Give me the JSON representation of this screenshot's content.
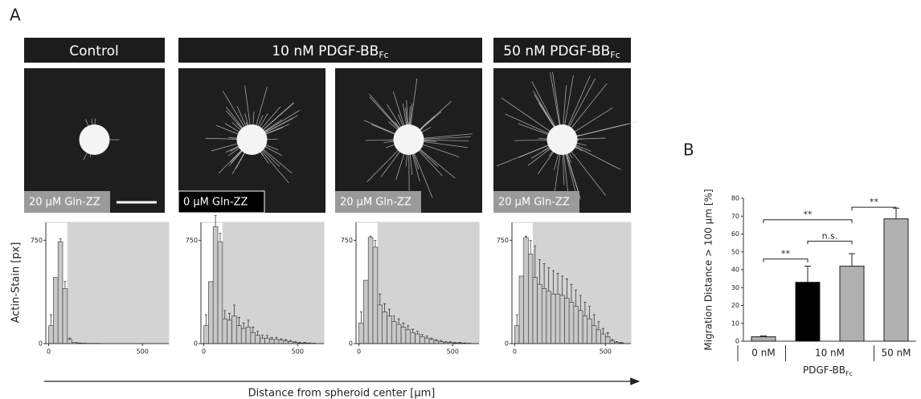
{
  "panel_labels": [
    "A",
    "B"
  ],
  "headers": [
    {
      "text": "Control"
    },
    {
      "text": "10 nM PDGF-BB",
      "sub": "Fc"
    },
    {
      "text": "50 nM PDGF-BB",
      "sub": "Fc"
    }
  ],
  "image_labels": [
    "20 µM Gln-ZZ",
    "0 µM Gln-ZZ",
    "20 µM Gln-ZZ",
    "20 µM Gln-ZZ"
  ],
  "histogram_axes": {
    "ylabel": "Actin-Stain [px]",
    "xlabel": "Distance from spheroid center [µm]"
  },
  "chart_data": [
    {
      "type": "histogram",
      "bins": [
        0,
        25,
        50,
        75,
        100,
        125,
        150,
        175,
        200,
        225,
        250,
        275,
        300,
        325,
        350,
        375,
        400,
        425,
        450,
        475,
        500,
        525,
        550,
        575,
        600
      ],
      "values": [
        130,
        480,
        740,
        400,
        30,
        10,
        5,
        3,
        2,
        2,
        2,
        0,
        0,
        0,
        0,
        0,
        0,
        0,
        0,
        0,
        0,
        0,
        0,
        0
      ],
      "errors": [
        80,
        0,
        20,
        50,
        10,
        0,
        0,
        0,
        0,
        0,
        0,
        0,
        0,
        0,
        0,
        0,
        0,
        0,
        0,
        0,
        0,
        0,
        0,
        0
      ],
      "color": "#c8c8c8",
      "xlim": [
        -15,
        640
      ],
      "ylim": [
        0,
        880
      ],
      "xticks": [
        0,
        500
      ],
      "yticks": [
        0,
        750
      ],
      "shade_from": 100
    },
    {
      "type": "histogram",
      "bins": [
        0,
        25,
        50,
        75,
        100,
        125,
        150,
        175,
        200,
        225,
        250,
        275,
        300,
        325,
        350,
        375,
        400,
        425,
        450,
        475,
        500,
        525,
        550,
        575,
        600
      ],
      "values": [
        130,
        450,
        850,
        740,
        180,
        170,
        200,
        130,
        110,
        120,
        80,
        60,
        40,
        40,
        30,
        30,
        25,
        20,
        15,
        10,
        5,
        5,
        3,
        2
      ],
      "errors": [
        80,
        0,
        80,
        60,
        60,
        50,
        80,
        60,
        40,
        50,
        40,
        30,
        20,
        20,
        15,
        15,
        10,
        10,
        8,
        5,
        3,
        3,
        2,
        1
      ],
      "color": "#c8c8c8",
      "xlim": [
        -15,
        640
      ],
      "ylim": [
        0,
        880
      ],
      "xticks": [
        0,
        500
      ],
      "yticks": [
        0,
        750
      ],
      "shade_from": 100
    },
    {
      "type": "histogram",
      "bins": [
        0,
        25,
        50,
        75,
        100,
        125,
        150,
        175,
        200,
        225,
        250,
        275,
        300,
        325,
        350,
        375,
        400,
        425,
        450,
        475,
        500,
        525,
        550,
        575,
        600
      ],
      "values": [
        150,
        460,
        770,
        700,
        280,
        230,
        200,
        160,
        140,
        120,
        100,
        80,
        70,
        50,
        40,
        30,
        20,
        15,
        10,
        8,
        5,
        5,
        3,
        2
      ],
      "errors": [
        80,
        0,
        10,
        50,
        80,
        60,
        50,
        40,
        40,
        30,
        30,
        25,
        20,
        15,
        15,
        10,
        10,
        8,
        5,
        5,
        3,
        3,
        2,
        1
      ],
      "color": "#c8c8c8",
      "xlim": [
        -15,
        640
      ],
      "ylim": [
        0,
        880
      ],
      "xticks": [
        0,
        500
      ],
      "yticks": [
        0,
        750
      ],
      "shade_from": 100
    },
    {
      "type": "histogram",
      "bins": [
        0,
        25,
        50,
        75,
        100,
        125,
        150,
        175,
        200,
        225,
        250,
        275,
        300,
        325,
        350,
        375,
        400,
        425,
        450,
        475,
        500,
        525,
        550,
        575,
        600
      ],
      "values": [
        130,
        490,
        770,
        650,
        480,
        430,
        400,
        380,
        360,
        360,
        350,
        330,
        300,
        270,
        240,
        200,
        180,
        130,
        100,
        70,
        50,
        20,
        10,
        5
      ],
      "errors": [
        80,
        0,
        10,
        100,
        230,
        180,
        180,
        170,
        170,
        150,
        140,
        140,
        130,
        120,
        110,
        100,
        90,
        80,
        60,
        40,
        30,
        10,
        5,
        3
      ],
      "color": "#c8c8c8",
      "xlim": [
        -15,
        640
      ],
      "ylim": [
        0,
        880
      ],
      "xticks": [
        0,
        500
      ],
      "yticks": [
        0,
        750
      ],
      "shade_from": 100
    },
    {
      "type": "bar",
      "ylabel": "Migration Distance > 100 µm [%]",
      "xlabel": "PDGF-BB",
      "xlabel_sub": "Fc",
      "categories": [
        "0 nM",
        "10 nM",
        null,
        "50 nM"
      ],
      "values": [
        2.5,
        33,
        42,
        68.5
      ],
      "errors": [
        0.5,
        9,
        7,
        6
      ],
      "colors": [
        "#b0b0b0",
        "#000000",
        "#b0b0b0",
        "#b0b0b0"
      ],
      "ylim": [
        0,
        80
      ],
      "yticks": [
        0,
        10,
        20,
        30,
        40,
        50,
        60,
        70,
        80
      ],
      "brackets": [
        {
          "label": "**",
          "from": 0,
          "to": 1,
          "y": 46
        },
        {
          "label": "**",
          "from": 0,
          "to": 2,
          "y": 68
        },
        {
          "label": "n.s.",
          "from": 1,
          "to": 2,
          "y": 56
        },
        {
          "label": "**",
          "from": 2,
          "to": 3,
          "y": 75
        }
      ]
    }
  ]
}
